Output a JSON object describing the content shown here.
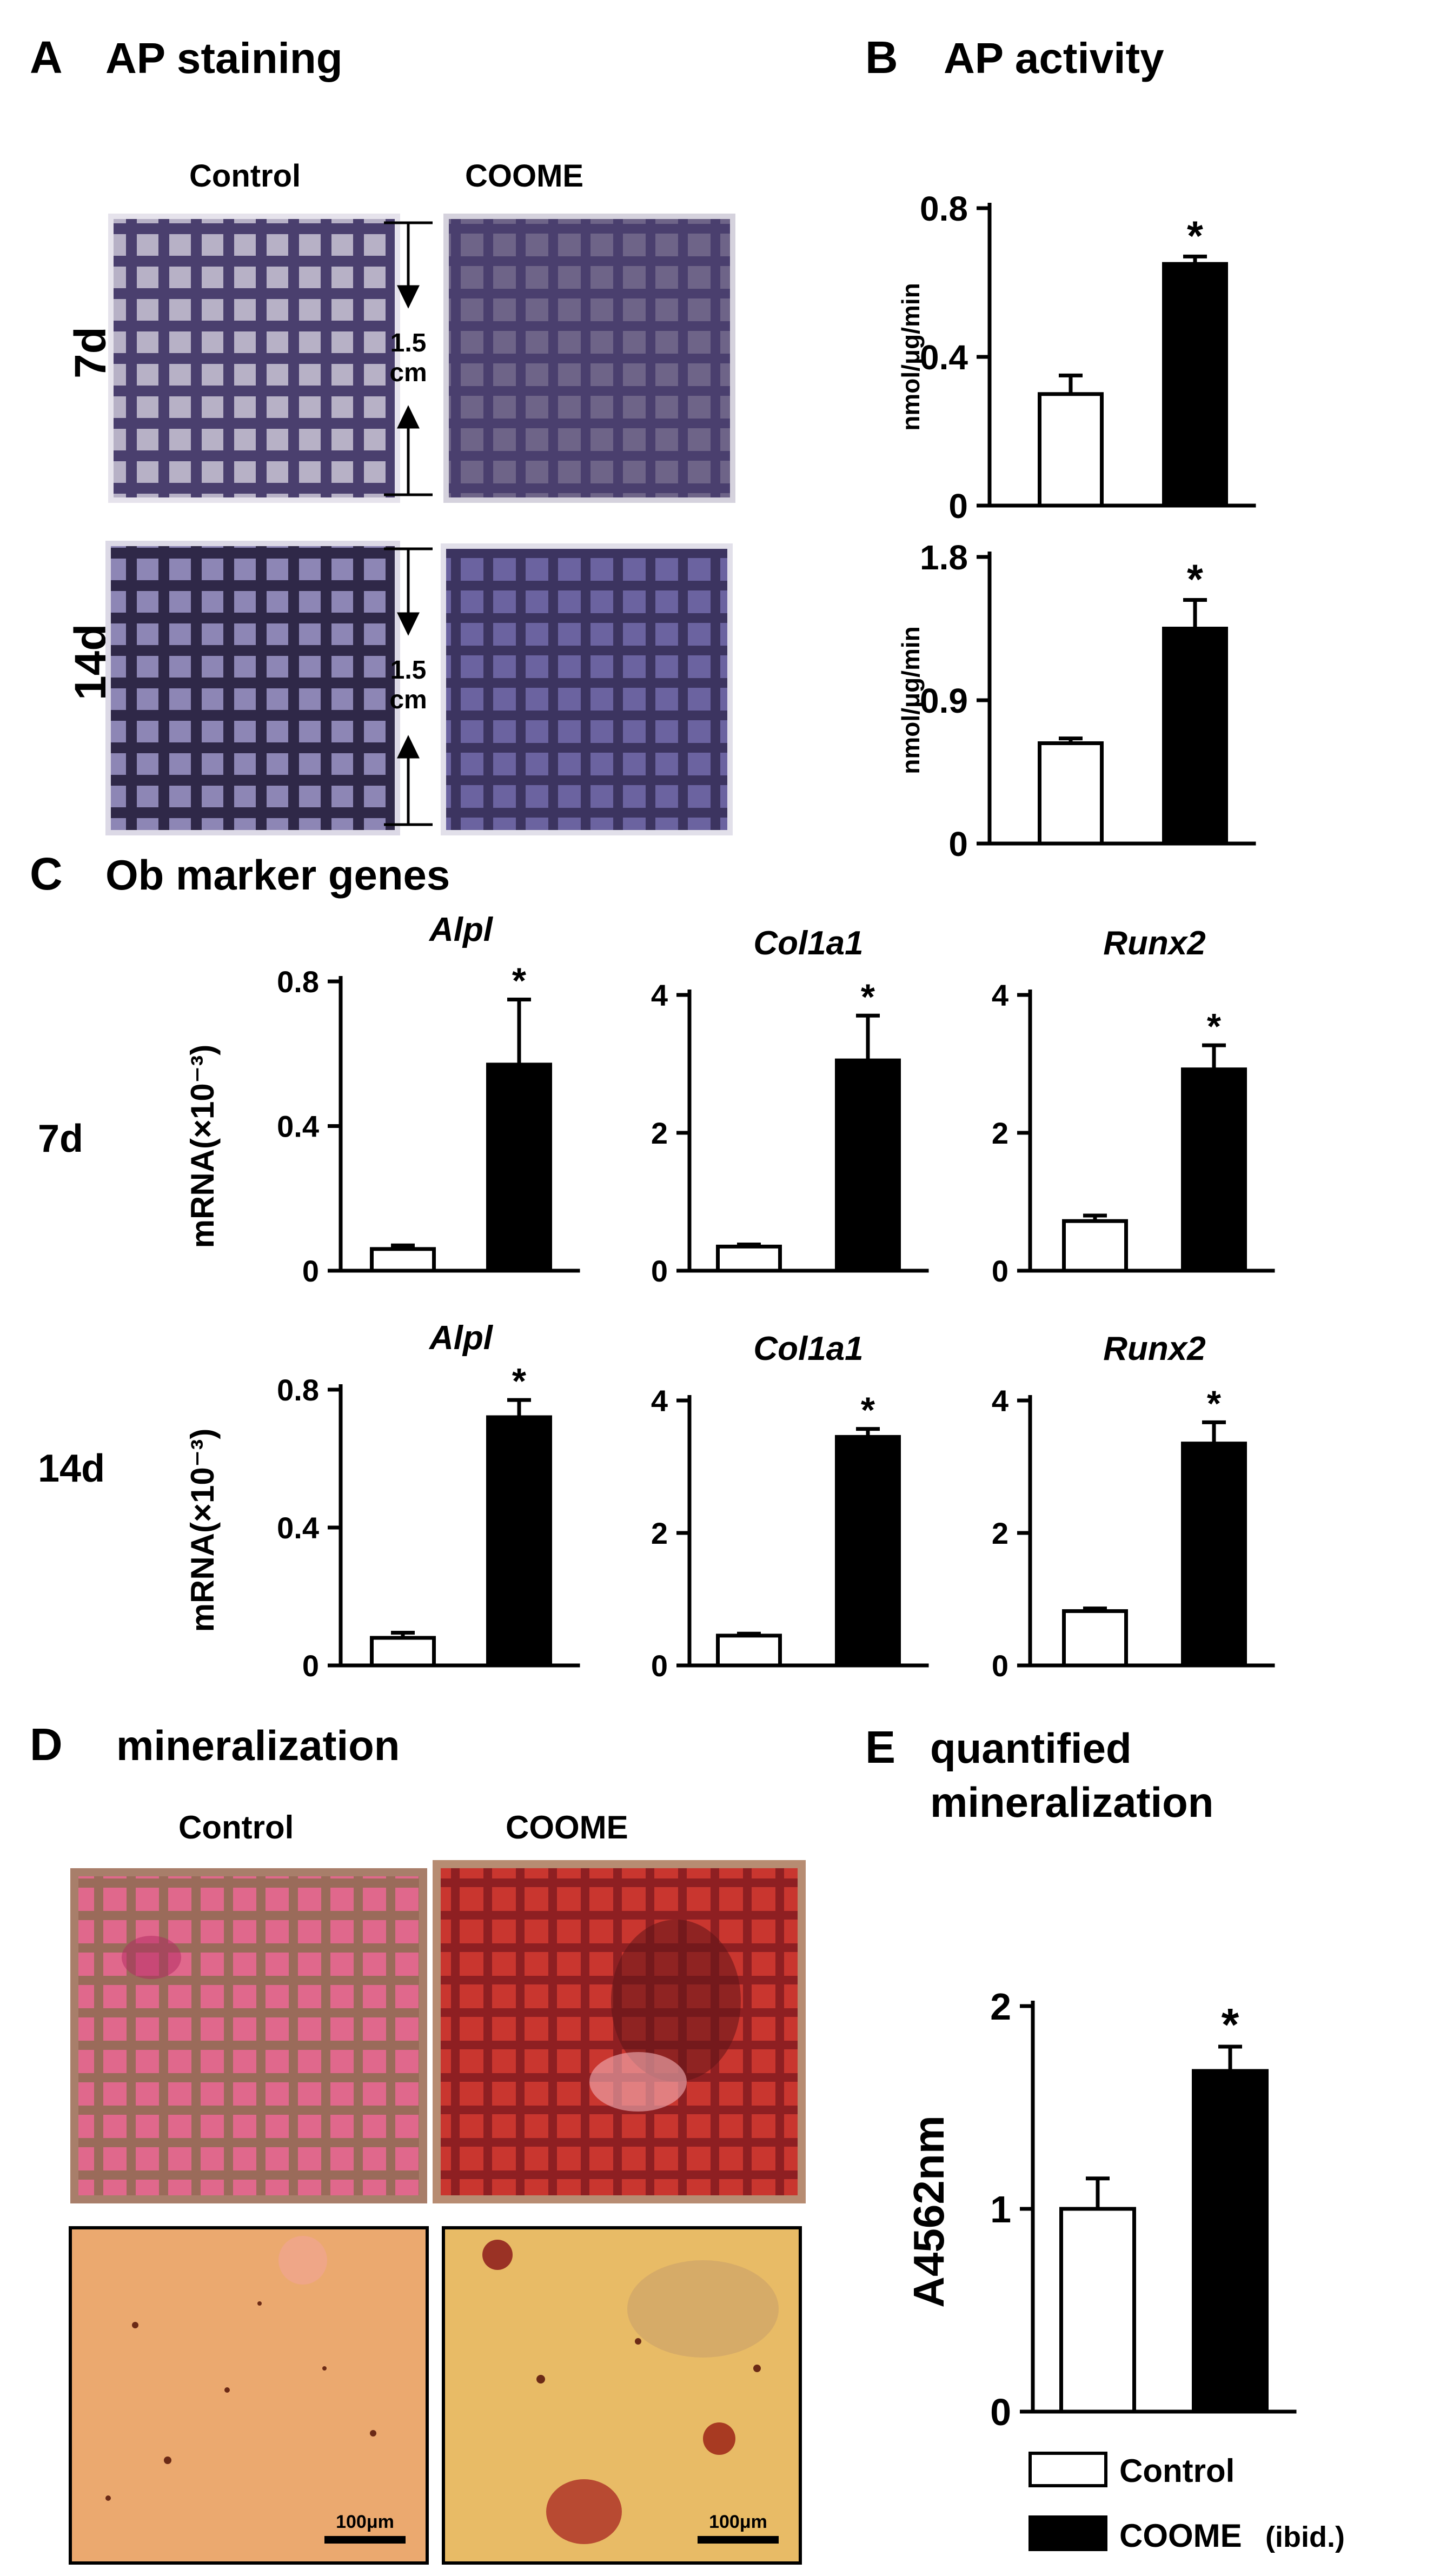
{
  "panels": {
    "A": {
      "letter": "A",
      "title": "AP staining",
      "col_control": "Control",
      "col_coome": "COOME",
      "row_7d": "7d",
      "row_14d": "14d",
      "scale_7d": [
        "1.5",
        "cm"
      ],
      "scale_14d": [
        "1.5",
        "cm"
      ]
    },
    "B": {
      "letter": "B",
      "title": "AP activity"
    },
    "C": {
      "letter": "C",
      "title": "Ob marker genes",
      "row_7d": "7d",
      "row_14d": "14d"
    },
    "D": {
      "letter": "D",
      "title": "mineralization",
      "col_control": "Control",
      "col_coome": "COOME",
      "scalebar_left": "100μm",
      "scalebar_right": "100μm"
    },
    "E": {
      "letter": "E",
      "title": [
        "quantified",
        "mineralization"
      ]
    }
  },
  "legend": {
    "control": "Control",
    "coome": "COOME",
    "coome_note": "(ibid.)"
  },
  "colors": {
    "control_fill": "#ffffff",
    "coome_fill": "#000000",
    "ap_stain": "#4a3f6e",
    "mineral_stain": "#b8323b",
    "micro_bg": "#e9a36a"
  },
  "chart_data": [
    {
      "id": "B-7d",
      "type": "bar",
      "categories": [
        "Control",
        "COOME"
      ],
      "values": [
        0.3,
        0.65
      ],
      "errors": [
        0.05,
        0.02
      ],
      "yticks": [
        "0",
        "0.4",
        "0.8"
      ],
      "ylim": [
        0,
        0.8
      ],
      "ylabel": "nmol/μg/min",
      "significance": [
        "",
        "*"
      ]
    },
    {
      "id": "B-14d",
      "type": "bar",
      "categories": [
        "Control",
        "COOME"
      ],
      "values": [
        0.63,
        1.35
      ],
      "errors": [
        0.03,
        0.18
      ],
      "yticks": [
        "0",
        "0.9",
        "1.8"
      ],
      "ylim": [
        0,
        1.8
      ],
      "ylabel": "nmol/μg/min",
      "significance": [
        "",
        "*"
      ]
    },
    {
      "id": "C-7d-Alpl",
      "type": "bar",
      "title": "Alpl",
      "categories": [
        "Control",
        "COOME"
      ],
      "values": [
        0.06,
        0.57
      ],
      "errors": [
        0.01,
        0.18
      ],
      "yticks": [
        "0",
        "0.4",
        "0.8"
      ],
      "ylim": [
        0,
        0.8
      ],
      "ylabel": "mRNA(×10⁻³)",
      "significance": [
        "",
        "*"
      ]
    },
    {
      "id": "C-7d-Col1a1",
      "type": "bar",
      "title": "Col1a1",
      "categories": [
        "Control",
        "COOME"
      ],
      "values": [
        0.35,
        3.05
      ],
      "errors": [
        0.03,
        0.65
      ],
      "yticks": [
        "0",
        "2",
        "4"
      ],
      "ylim": [
        0,
        4
      ],
      "significance": [
        "",
        "*"
      ]
    },
    {
      "id": "C-7d-Runx2",
      "type": "bar",
      "title": "Runx2",
      "categories": [
        "Control",
        "COOME"
      ],
      "values": [
        0.72,
        2.92
      ],
      "errors": [
        0.08,
        0.35
      ],
      "yticks": [
        "0",
        "2",
        "4"
      ],
      "ylim": [
        0,
        4
      ],
      "significance": [
        "",
        "*"
      ]
    },
    {
      "id": "C-14d-Alpl",
      "type": "bar",
      "title": "Alpl",
      "categories": [
        "Control",
        "COOME"
      ],
      "values": [
        0.08,
        0.72
      ],
      "errors": [
        0.015,
        0.05
      ],
      "yticks": [
        "0",
        "0.4",
        "0.8"
      ],
      "ylim": [
        0,
        0.8
      ],
      "ylabel": "mRNA(×10⁻³)",
      "significance": [
        "",
        "*"
      ]
    },
    {
      "id": "C-14d-Col1a1",
      "type": "bar",
      "title": "Col1a1",
      "categories": [
        "Control",
        "COOME"
      ],
      "values": [
        0.45,
        3.45
      ],
      "errors": [
        0.03,
        0.12
      ],
      "yticks": [
        "0",
        "2",
        "4"
      ],
      "ylim": [
        0,
        4
      ],
      "significance": [
        "",
        "*"
      ]
    },
    {
      "id": "C-14d-Runx2",
      "type": "bar",
      "title": "Runx2",
      "categories": [
        "Control",
        "COOME"
      ],
      "values": [
        0.82,
        3.35
      ],
      "errors": [
        0.04,
        0.32
      ],
      "yticks": [
        "0",
        "2",
        "4"
      ],
      "ylim": [
        0,
        4
      ],
      "significance": [
        "",
        "*"
      ]
    },
    {
      "id": "E",
      "type": "bar",
      "categories": [
        "Control",
        "COOME"
      ],
      "values": [
        1.0,
        1.68
      ],
      "errors": [
        0.15,
        0.12
      ],
      "yticks": [
        "0",
        "1",
        "2"
      ],
      "ylim": [
        0,
        2
      ],
      "ylabel": "A4562nm",
      "significance": [
        "",
        "*"
      ]
    }
  ]
}
